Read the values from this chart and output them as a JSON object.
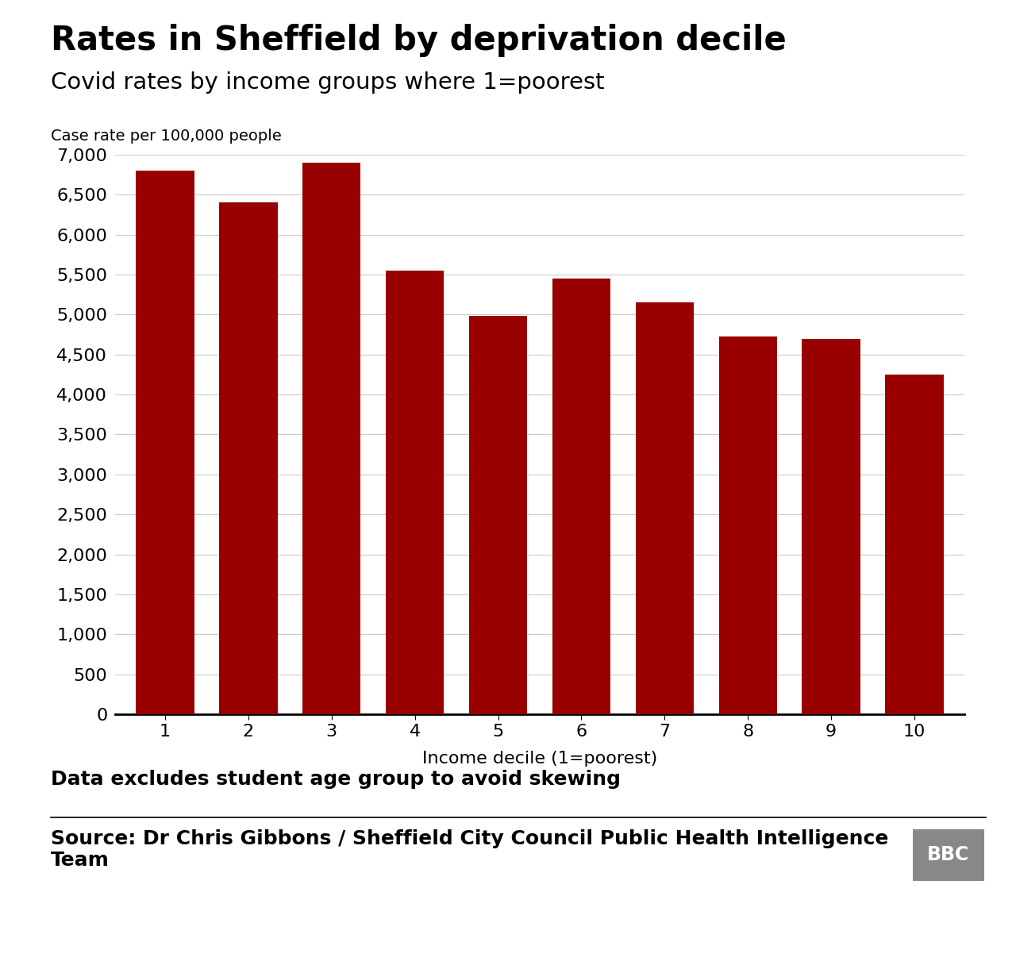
{
  "title": "Rates in Sheffield by deprivation decile",
  "subtitle": "Covid rates by income groups where 1=poorest",
  "ylabel_note": "Case rate per 100,000 people",
  "xlabel": "Income decile (1=poorest)",
  "categories": [
    1,
    2,
    3,
    4,
    5,
    6,
    7,
    8,
    9,
    10
  ],
  "values": [
    6800,
    6400,
    6900,
    5550,
    4980,
    5450,
    5150,
    4730,
    4700,
    4250
  ],
  "bar_color": "#990000",
  "ylim": [
    0,
    7000
  ],
  "yticks": [
    0,
    500,
    1000,
    1500,
    2000,
    2500,
    3000,
    3500,
    4000,
    4500,
    5000,
    5500,
    6000,
    6500,
    7000
  ],
  "background_color": "#ffffff",
  "note_text": "Data excludes student age group to avoid skewing",
  "source_text": "Source: Dr Chris Gibbons / Sheffield City Council Public Health Intelligence\nTeam",
  "bbc_logo_text": "BBC",
  "title_fontsize": 30,
  "subtitle_fontsize": 21,
  "note_fontsize": 18,
  "source_fontsize": 18,
  "axis_label_fontsize": 16,
  "tick_fontsize": 16,
  "ylabel_note_fontsize": 14
}
